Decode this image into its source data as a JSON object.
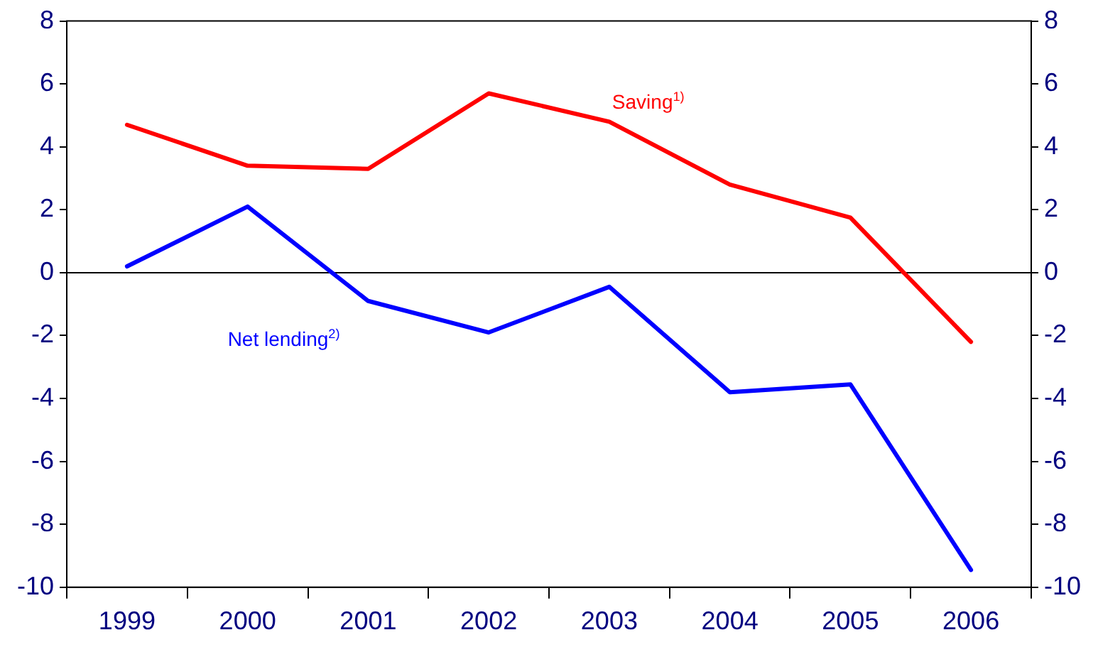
{
  "chart_data": {
    "type": "line",
    "categories": [
      "1999",
      "2000",
      "2001",
      "2002",
      "2003",
      "2004",
      "2005",
      "2006"
    ],
    "series": [
      {
        "name": "Saving$^{1)}$",
        "color": "#ff0000",
        "values": [
          4.7,
          3.4,
          3.3,
          5.7,
          4.8,
          2.8,
          1.75,
          -2.2
        ]
      },
      {
        "name": "Net lending$^{2)}$",
        "color": "#0000ff",
        "values": [
          0.2,
          2.1,
          -0.9,
          -1.9,
          -0.45,
          -3.8,
          -3.55,
          -9.45
        ]
      }
    ],
    "ylim": [
      -10,
      8
    ],
    "yticks": [
      -10,
      -8,
      -6,
      -4,
      -2,
      0,
      2,
      4,
      6,
      8
    ],
    "y2lim": [
      -10,
      8
    ],
    "y2ticks": [
      -10,
      -8,
      -6,
      -4,
      -2,
      0,
      2,
      4,
      6,
      8
    ],
    "ref_lines": [
      {
        "axis": "y",
        "value": 0,
        "color": "#000000"
      }
    ],
    "grid": false,
    "legend": false,
    "marker": "none",
    "line_style": "solid"
  }
}
